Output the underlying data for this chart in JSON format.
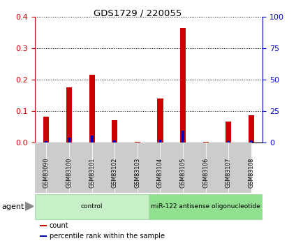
{
  "title": "GDS1729 / 220055",
  "samples": [
    "GSM83090",
    "GSM83100",
    "GSM83101",
    "GSM83102",
    "GSM83103",
    "GSM83104",
    "GSM83105",
    "GSM83106",
    "GSM83107",
    "GSM83108"
  ],
  "count_values": [
    0.082,
    0.175,
    0.215,
    0.07,
    0.002,
    0.14,
    0.365,
    0.002,
    0.067,
    0.085
  ],
  "percentile_values": [
    1.0,
    3.5,
    5.5,
    1.2,
    0.0,
    2.0,
    9.5,
    0.0,
    1.0,
    1.2
  ],
  "count_color": "#cc0000",
  "percentile_color": "#0000bb",
  "ylim_left": [
    0,
    0.4
  ],
  "ylim_right": [
    0,
    100
  ],
  "yticks_left": [
    0,
    0.1,
    0.2,
    0.3,
    0.4
  ],
  "yticks_right": [
    0,
    25,
    50,
    75,
    100
  ],
  "groups": [
    {
      "label": "control",
      "start": 0,
      "end": 5,
      "color": "#c8f0c8"
    },
    {
      "label": "miR-122 antisense oligonucleotide",
      "start": 5,
      "end": 10,
      "color": "#90e090"
    }
  ],
  "agent_label": "agent",
  "legend_items": [
    {
      "label": "count",
      "color": "#cc0000"
    },
    {
      "label": "percentile rank within the sample",
      "color": "#0000bb"
    }
  ],
  "red_bar_width": 0.25,
  "blue_bar_width": 0.12,
  "background_color": "#ffffff",
  "plot_bg_color": "#ffffff",
  "tick_label_color_left": "#cc0000",
  "tick_label_color_right": "#0000bb",
  "grid_color": "#000000",
  "sample_bg_color": "#cccccc",
  "group1_color": "#b8f0b8",
  "group2_color": "#80e080"
}
